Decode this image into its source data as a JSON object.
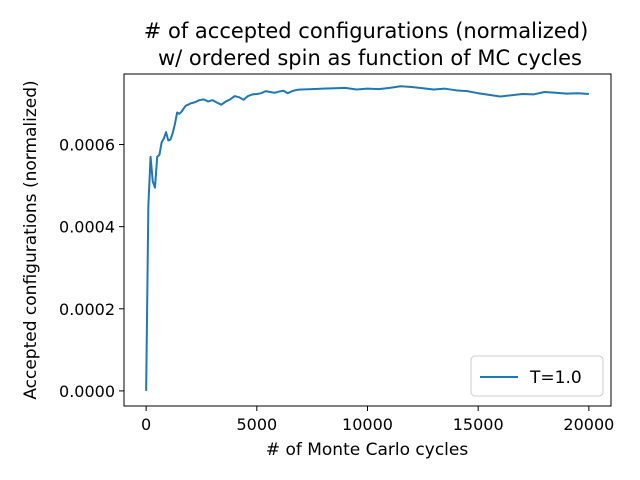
{
  "chart_data": {
    "type": "line",
    "title_line1": "# of accepted configurations (normalized)",
    "title_line2": "w/ ordered spin as function of MC cycles",
    "xlabel": "# of Monte Carlo cycles",
    "ylabel": "Accepted configurations (normalized)",
    "xlim": [
      -1000,
      21000
    ],
    "ylim": [
      -3.675e-05,
      0.00077175
    ],
    "xticks": [
      0,
      5000,
      10000,
      15000,
      20000
    ],
    "xtick_labels": [
      "0",
      "5000",
      "10000",
      "15000",
      "20000"
    ],
    "yticks": [
      0.0,
      0.0002,
      0.0004,
      0.0006
    ],
    "ytick_labels": [
      "0.0000",
      "0.0002",
      "0.0004",
      "0.0006"
    ],
    "grid": false,
    "legend_position": "lower-right",
    "series": [
      {
        "name": "T=1.0",
        "color": "#1f77b4",
        "x": [
          0,
          100,
          200,
          300,
          400,
          500,
          600,
          700,
          800,
          900,
          1000,
          1100,
          1200,
          1300,
          1400,
          1500,
          1600,
          1700,
          1800,
          1900,
          2000,
          2200,
          2400,
          2600,
          2800,
          3000,
          3200,
          3400,
          3600,
          3800,
          4000,
          4200,
          4400,
          4600,
          4800,
          5000,
          5200,
          5400,
          5600,
          5800,
          6000,
          6200,
          6400,
          6600,
          6800,
          7000,
          7500,
          8000,
          8500,
          9000,
          9500,
          10000,
          10500,
          11000,
          11500,
          12000,
          12500,
          13000,
          13500,
          14000,
          14500,
          15000,
          15500,
          16000,
          16500,
          17000,
          17500,
          18000,
          18500,
          19000,
          19500,
          20000
        ],
        "y": [
          0.0,
          0.00045,
          0.00057,
          0.00051,
          0.000495,
          0.00057,
          0.000575,
          0.000605,
          0.000615,
          0.00063,
          0.00061,
          0.000612,
          0.000628,
          0.00065,
          0.000678,
          0.000675,
          0.00068,
          0.000688,
          0.000695,
          0.000697,
          0.0007,
          0.000703,
          0.000708,
          0.00071,
          0.000705,
          0.000708,
          0.000702,
          0.000697,
          0.000705,
          0.00071,
          0.000718,
          0.000715,
          0.000709,
          0.000718,
          0.000722,
          0.000723,
          0.000725,
          0.00073,
          0.000728,
          0.000726,
          0.000729,
          0.000731,
          0.000725,
          0.00073,
          0.000733,
          0.000734,
          0.000735,
          0.000736,
          0.000737,
          0.000738,
          0.000734,
          0.000736,
          0.000735,
          0.000738,
          0.000742,
          0.00074,
          0.000737,
          0.000734,
          0.000736,
          0.000732,
          0.00073,
          0.000725,
          0.000721,
          0.000717,
          0.00072,
          0.000723,
          0.000722,
          0.000728,
          0.000726,
          0.000724,
          0.000725,
          0.000723
        ]
      }
    ]
  }
}
